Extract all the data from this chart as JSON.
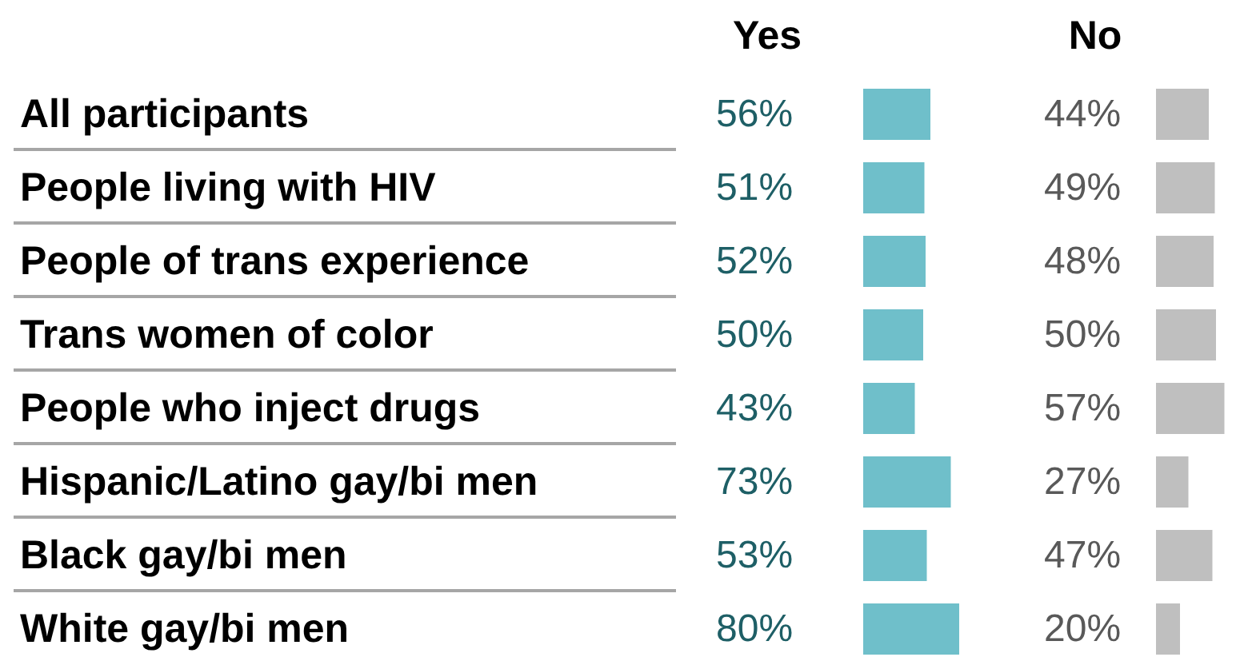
{
  "chart_data": [
    {
      "type": "bar",
      "orientation": "horizontal",
      "categories": [
        "All participants",
        "People living with HIV",
        "People of trans experience",
        "Trans women of color",
        "People who inject drugs",
        "Hispanic/Latino gay/bi men",
        "Black gay/bi men",
        "White gay/bi men"
      ],
      "series": [
        {
          "name": "Yes",
          "color": "#6fbfca",
          "values": [
            56,
            51,
            52,
            50,
            43,
            73,
            53,
            80
          ],
          "value_labels": [
            "56%",
            "51%",
            "52%",
            "50%",
            "43%",
            "73%",
            "53%",
            "80%"
          ]
        }
      ]
    },
    {
      "type": "bar",
      "orientation": "horizontal",
      "categories": [
        null,
        null,
        null,
        null,
        null,
        null,
        null,
        null
      ],
      "series": [
        {
          "name": "No",
          "color": "#bfbfbf",
          "values": [
            44,
            49,
            48,
            50,
            57,
            27,
            47,
            20
          ],
          "value_labels": [
            "44%",
            "49%",
            "48%",
            "50%",
            "57%",
            "27%",
            "47%",
            "20%"
          ]
        }
      ]
    }
  ]
}
